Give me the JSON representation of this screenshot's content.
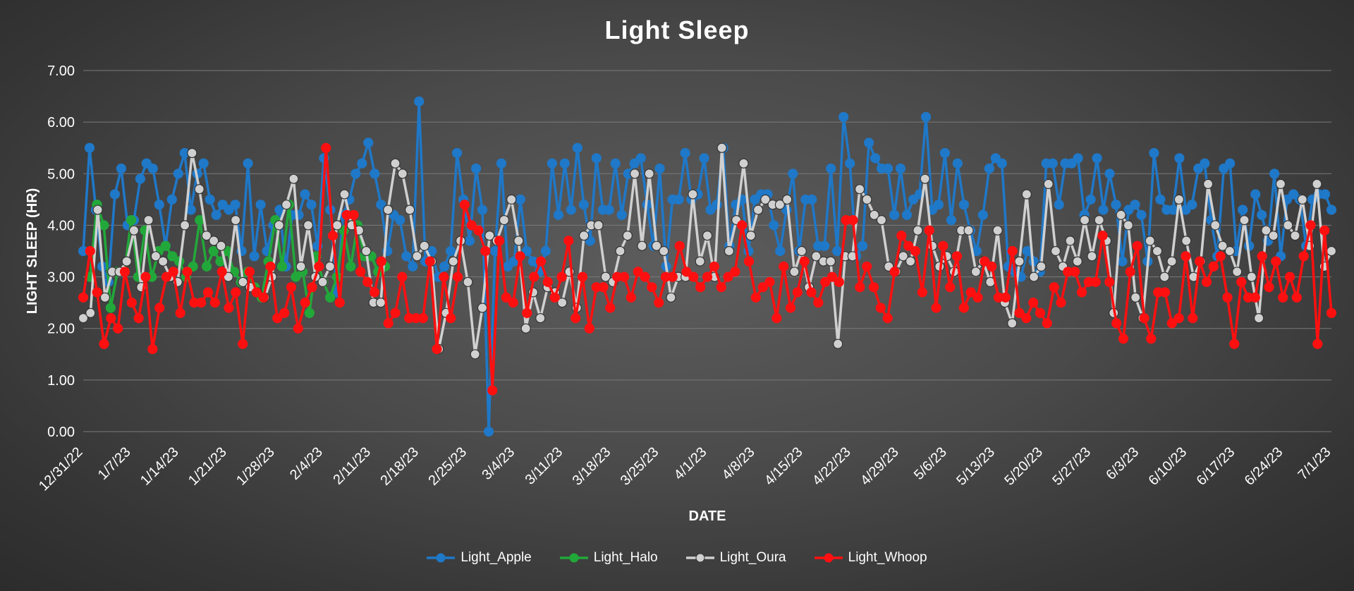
{
  "chart_data": {
    "type": "line",
    "title": "Light Sleep",
    "xlabel": "DATE",
    "ylabel": "LIGHT SLEEP (HR)",
    "ylim": [
      0,
      7
    ],
    "y_ticks": [
      "0.00",
      "1.00",
      "2.00",
      "3.00",
      "4.00",
      "5.00",
      "6.00",
      "7.00"
    ],
    "x_start": "12/31/22",
    "x_end": "7/1/23",
    "x_tick_labels": [
      "12/31/22",
      "1/7/23",
      "1/14/23",
      "1/21/23",
      "1/28/23",
      "2/4/23",
      "2/11/23",
      "2/18/23",
      "2/25/23",
      "3/4/23",
      "3/11/23",
      "3/18/23",
      "3/25/23",
      "4/1/23",
      "4/8/23",
      "4/15/23",
      "4/22/23",
      "4/29/23",
      "5/6/23",
      "5/13/23",
      "5/20/23",
      "5/27/23",
      "6/3/23",
      "6/10/23",
      "6/17/23",
      "6/24/23",
      "7/1/23"
    ],
    "grid": "horizontal",
    "legend_position": "bottom",
    "series": [
      {
        "name": "Light_Apple",
        "color": "#1f78c8",
        "marker_fill": "#1f78c8",
        "values": [
          3.5,
          5.5,
          4.3,
          3.2,
          2.9,
          4.6,
          5.1,
          4.0,
          4.1,
          4.9,
          5.2,
          5.1,
          4.4,
          3.6,
          4.5,
          5.0,
          5.4,
          4.3,
          5.0,
          5.2,
          4.5,
          4.2,
          4.4,
          4.3,
          4.4,
          3.5,
          5.2,
          3.4,
          4.4,
          3.5,
          4.0,
          4.3,
          3.2,
          4.2,
          4.2,
          4.6,
          4.4,
          3.6,
          5.3,
          4.3,
          2.7,
          4.2,
          4.5,
          5.0,
          5.2,
          5.6,
          5.0,
          4.4,
          3.5,
          4.2,
          4.1,
          3.4,
          3.2,
          6.4,
          3.3,
          3.5,
          3.0,
          3.2,
          3.5,
          5.4,
          4.5,
          3.7,
          5.1,
          4.3,
          0.0,
          3.5,
          5.2,
          3.2,
          3.3,
          4.5,
          3.5,
          3.3,
          3.1,
          3.5,
          5.2,
          4.2,
          5.2,
          4.3,
          5.5,
          4.4,
          3.7,
          5.3,
          4.3,
          4.3,
          5.2,
          4.2,
          5.0,
          5.2,
          5.3,
          4.4,
          3.6,
          5.1,
          3.2,
          4.5,
          4.5,
          5.4,
          4.5,
          4.6,
          5.3,
          4.3,
          4.4,
          5.5,
          3.6,
          4.4,
          4.5,
          3.5,
          4.5,
          4.6,
          4.6,
          4.0,
          3.5,
          4.3,
          5.0,
          3.5,
          4.5,
          4.5,
          3.6,
          3.6,
          5.1,
          3.5,
          6.1,
          5.2,
          3.4,
          3.6,
          5.6,
          5.3,
          5.1,
          5.1,
          4.2,
          5.1,
          4.2,
          4.5,
          4.6,
          6.1,
          4.3,
          4.4,
          5.4,
          4.1,
          5.2,
          4.4,
          3.9,
          3.5,
          4.2,
          5.1,
          5.3,
          5.2,
          3.2,
          3.1,
          3.0,
          3.5,
          3.3,
          3.1,
          5.2,
          5.2,
          4.4,
          5.2,
          5.2,
          5.3,
          4.2,
          4.5,
          5.3,
          4.3,
          5.0,
          4.4,
          3.3,
          4.3,
          4.4,
          4.2,
          3.3,
          5.4,
          4.5,
          4.3,
          4.3,
          5.3,
          4.3,
          4.4,
          5.1,
          5.2,
          4.1,
          3.4,
          5.1,
          5.2,
          3.5,
          4.3,
          3.6,
          4.6,
          4.2,
          3.7,
          5.0,
          3.4,
          4.5,
          4.6,
          4.5,
          3.6,
          4.5,
          4.6,
          4.6,
          4.3
        ]
      },
      {
        "name": "Light_Halo",
        "color": "#22a83a",
        "marker_fill": "#22a83a",
        "values": [
          3.0,
          4.4,
          4.0,
          2.4,
          3.1,
          3.1,
          4.1,
          3.0,
          3.9,
          3.0,
          3.5,
          3.6,
          3.4,
          3.3,
          3.0,
          3.2,
          4.1,
          3.2,
          3.5,
          3.3,
          3.5,
          3.1,
          2.9,
          3.1,
          2.8,
          2.6,
          3.3,
          4.1,
          3.2,
          4.4,
          3.0,
          3.1,
          2.3,
          3.4,
          2.9,
          2.6,
          3.0,
          3.9,
          3.2,
          4.0,
          3.4,
          3.4,
          3.1,
          3.2
        ]
      },
      {
        "name": "Light_Oura",
        "color": "#d0d0d0",
        "marker_fill": "#d0d0d0",
        "values": [
          2.2,
          2.3,
          4.3,
          2.6,
          3.1,
          3.1,
          3.3,
          3.9,
          2.8,
          4.1,
          3.4,
          3.3,
          3.0,
          2.9,
          4.0,
          5.4,
          4.7,
          3.8,
          3.7,
          3.6,
          3.0,
          4.1,
          2.9,
          2.8,
          2.7,
          2.6,
          3.0,
          4.0,
          4.4,
          4.9,
          3.2,
          4.0,
          3.0,
          2.9,
          3.2,
          4.0,
          4.6,
          4.0,
          3.9,
          3.5,
          2.5,
          2.5,
          4.3,
          5.2,
          5.0,
          4.3,
          3.4,
          3.6,
          3.3,
          1.6,
          2.3,
          3.3,
          3.7,
          2.9,
          1.5,
          2.4,
          3.8,
          3.7,
          4.1,
          4.5,
          3.7,
          2.0,
          2.7,
          2.2,
          2.8,
          2.7,
          2.5,
          3.1,
          2.4,
          3.8,
          4.0,
          4.0,
          3.0,
          2.9,
          3.5,
          3.8,
          5.0,
          3.6,
          5.0,
          3.6,
          3.5,
          2.6,
          3.0,
          3.0,
          4.6,
          3.3,
          3.8,
          3.0,
          5.5,
          3.5,
          4.1,
          5.2,
          3.8,
          4.3,
          4.5,
          4.4,
          4.4,
          4.5,
          3.1,
          3.5,
          2.8,
          3.4,
          3.3,
          3.3,
          1.7,
          3.4,
          3.4,
          4.7,
          4.5,
          4.2,
          4.1,
          3.2,
          3.1,
          3.4,
          3.3,
          3.9,
          4.9,
          3.6,
          3.2,
          3.4,
          3.1,
          3.9,
          3.9,
          3.1,
          3.3,
          2.9,
          3.9,
          2.5,
          2.1,
          3.3,
          4.6,
          3.0,
          3.2,
          4.8,
          3.5,
          3.2,
          3.7,
          3.3,
          4.1,
          3.4,
          4.1,
          3.7,
          2.3,
          4.2,
          4.0,
          2.6,
          2.2,
          3.7,
          3.5,
          3.0,
          3.3,
          4.5,
          3.7,
          3.0,
          3.3,
          4.8,
          4.0,
          3.6,
          3.5,
          3.1,
          4.1,
          3.0,
          2.2,
          3.9,
          3.8,
          4.8,
          4.0,
          3.8,
          4.5,
          3.6,
          4.8,
          3.2,
          3.5
        ]
      },
      {
        "name": "Light_Whoop",
        "color": "#ff1010",
        "marker_fill": "#ff1010",
        "values": [
          2.6,
          3.5,
          2.7,
          1.7,
          2.2,
          2.0,
          3.1,
          2.5,
          2.2,
          3.0,
          1.6,
          2.4,
          3.0,
          3.1,
          2.3,
          3.1,
          2.5,
          2.5,
          2.7,
          2.5,
          3.1,
          2.4,
          2.7,
          1.7,
          3.1,
          2.7,
          2.6,
          3.2,
          2.2,
          2.3,
          2.8,
          2.0,
          2.5,
          2.8,
          3.2,
          5.5,
          3.8,
          2.5,
          4.2,
          4.2,
          3.1,
          2.9,
          2.7,
          3.3,
          2.1,
          2.3,
          3.0,
          2.2,
          2.2,
          2.2,
          3.3,
          1.6,
          3.0,
          2.2,
          3.0,
          4.4,
          4.0,
          3.9,
          3.5,
          0.8,
          3.7,
          2.6,
          2.5,
          3.4,
          2.3,
          3.0,
          3.3,
          2.9,
          2.6,
          3.0,
          3.7,
          2.2,
          3.0,
          2.0,
          2.8,
          2.8,
          2.4,
          3.0,
          3.0,
          2.6,
          3.1,
          3.0,
          2.8,
          2.5,
          3.0,
          3.0,
          3.6,
          3.1,
          3.0,
          2.8,
          3.0,
          3.2,
          2.8,
          3.0,
          3.1,
          4.0,
          3.3,
          2.6,
          2.8,
          2.9,
          2.2,
          3.2,
          2.4,
          2.7,
          3.3,
          2.7,
          2.5,
          2.9,
          3.0,
          2.9,
          4.1,
          4.1,
          2.8,
          3.2,
          2.8,
          2.4,
          2.2,
          3.1,
          3.8,
          3.6,
          3.5,
          2.7,
          3.9,
          2.4,
          3.6,
          2.8,
          3.4,
          2.4,
          2.7,
          2.6,
          3.3,
          3.2,
          2.6,
          2.6,
          3.5,
          2.3,
          2.2,
          2.5,
          2.3,
          2.1,
          2.8,
          2.5,
          3.1,
          3.1,
          2.7,
          2.9,
          2.9,
          3.8,
          2.9,
          2.1,
          1.8,
          3.1,
          3.6,
          2.2,
          1.8,
          2.7,
          2.7,
          2.1,
          2.2,
          3.4,
          2.2,
          3.3,
          2.9,
          3.2,
          3.4,
          2.6,
          1.7,
          2.9,
          2.6,
          2.6,
          3.4,
          2.8,
          3.3,
          2.6,
          3.0,
          2.6,
          3.4,
          4.0,
          1.7,
          3.9,
          2.3
        ]
      }
    ]
  }
}
